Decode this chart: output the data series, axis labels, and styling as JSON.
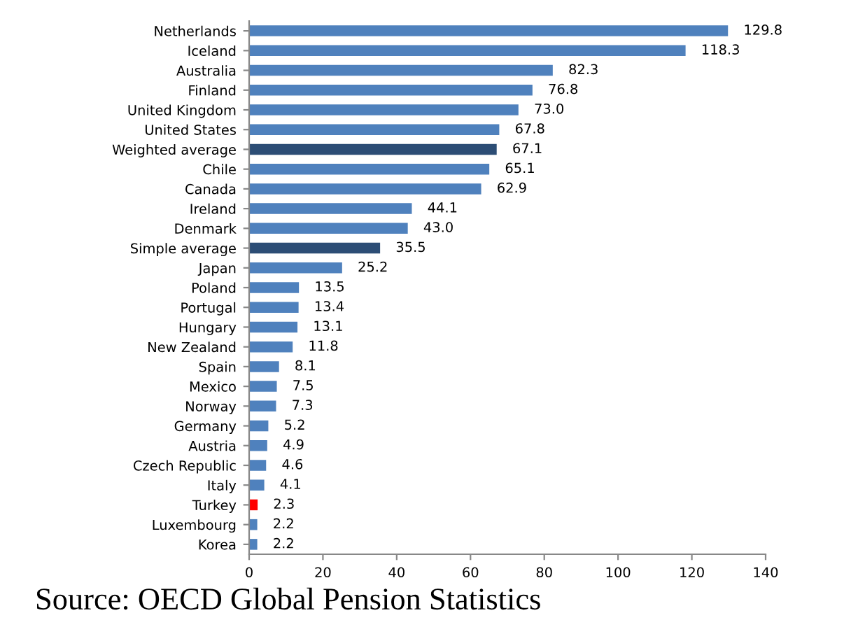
{
  "chart_data": {
    "type": "bar",
    "orientation": "horizontal",
    "categories": [
      "Netherlands",
      "Iceland",
      "Australia",
      "Finland",
      "United Kingdom",
      "United States",
      "Weighted average",
      "Chile",
      "Canada",
      "Ireland",
      "Denmark",
      "Simple average",
      "Japan",
      "Poland",
      "Portugal",
      "Hungary",
      "New Zealand",
      "Spain",
      "Mexico",
      "Norway",
      "Germany",
      "Austria",
      "Czech Republic",
      "Italy",
      "Turkey",
      "Luxembourg",
      "Korea"
    ],
    "values": [
      129.8,
      118.3,
      82.3,
      76.8,
      73.0,
      67.8,
      67.1,
      65.1,
      62.9,
      44.1,
      43.0,
      35.5,
      25.2,
      13.5,
      13.4,
      13.1,
      11.8,
      8.1,
      7.5,
      7.3,
      5.2,
      4.9,
      4.6,
      4.1,
      2.3,
      2.2,
      2.2
    ],
    "colors": [
      "#4f81bd",
      "#4f81bd",
      "#4f81bd",
      "#4f81bd",
      "#4f81bd",
      "#4f81bd",
      "#2c4d75",
      "#4f81bd",
      "#4f81bd",
      "#4f81bd",
      "#4f81bd",
      "#2c4d75",
      "#4f81bd",
      "#4f81bd",
      "#4f81bd",
      "#4f81bd",
      "#4f81bd",
      "#4f81bd",
      "#4f81bd",
      "#4f81bd",
      "#4f81bd",
      "#4f81bd",
      "#4f81bd",
      "#4f81bd",
      "#ff0000",
      "#4f81bd",
      "#4f81bd"
    ],
    "value_labels": [
      "129.8",
      "118.3",
      "82.3",
      "76.8",
      "73.0",
      "67.8",
      "67.1",
      "65.1",
      "62.9",
      "44.1",
      "43.0",
      "35.5",
      "25.2",
      "13.5",
      "13.4",
      "13.1",
      "11.8",
      "8.1",
      "7.5",
      "7.3",
      "5.2",
      "4.9",
      "4.6",
      "4.1",
      "2.3",
      "2.2",
      "2.2"
    ],
    "xlim": [
      0,
      140
    ],
    "xticks": [
      0,
      20,
      40,
      60,
      80,
      100,
      120,
      140
    ],
    "grid": false,
    "annotations": [
      "Source: OECD Global Pension Statistics"
    ]
  }
}
